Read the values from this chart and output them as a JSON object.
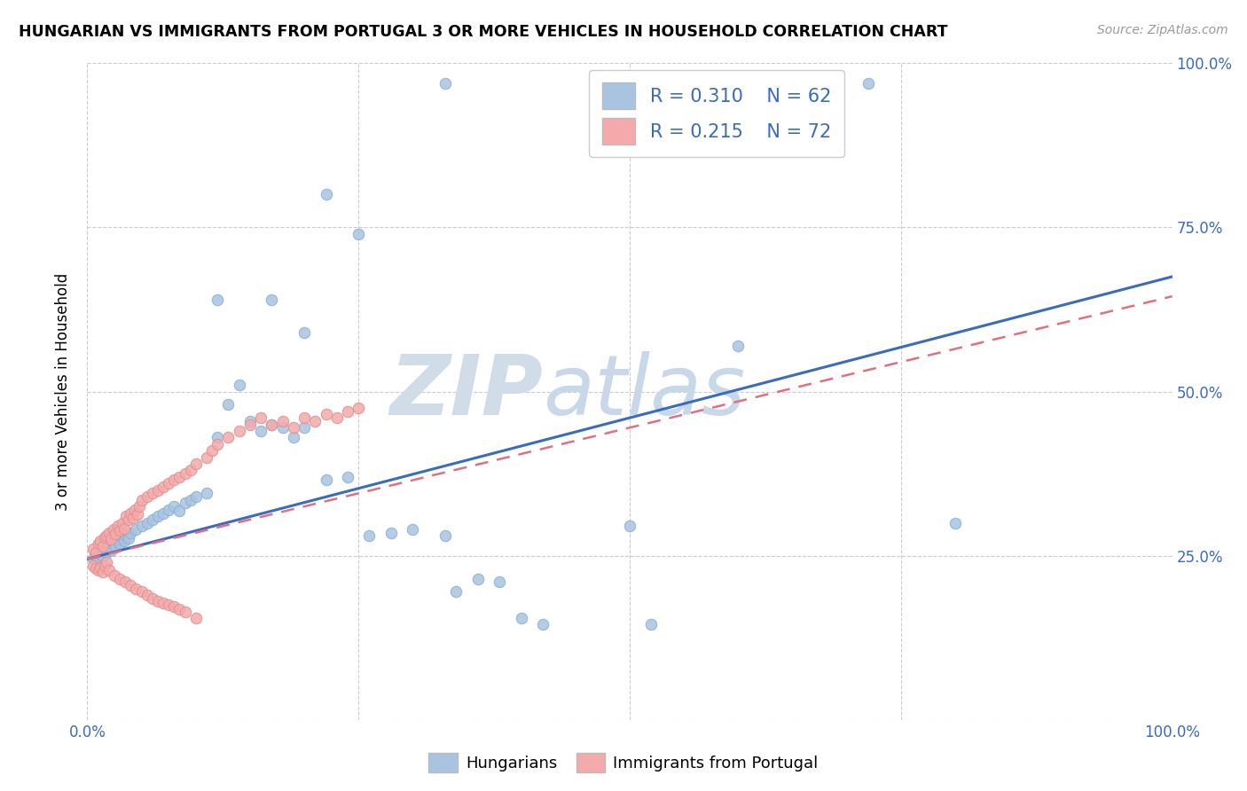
{
  "title": "HUNGARIAN VS IMMIGRANTS FROM PORTUGAL 3 OR MORE VEHICLES IN HOUSEHOLD CORRELATION CHART",
  "source": "Source: ZipAtlas.com",
  "ylabel": "3 or more Vehicles in Household",
  "xlim": [
    0,
    1.0
  ],
  "ylim": [
    0,
    1.0
  ],
  "blue_R": 0.31,
  "blue_N": 62,
  "pink_R": 0.215,
  "pink_N": 72,
  "blue_color": "#A8C4E0",
  "pink_color": "#F4AAAA",
  "blue_line_color": "#3A6BBF",
  "pink_line_color": "#E07080",
  "legend_color": "#3A6BBF",
  "watermark_zip_color": "#D0DCE8",
  "watermark_atlas_color": "#C8D8E8",
  "blue_line_x0": 0.0,
  "blue_line_y0": 0.245,
  "blue_line_x1": 1.0,
  "blue_line_y1": 0.675,
  "pink_line_x0": 0.0,
  "pink_line_y0": 0.245,
  "pink_line_x1": 1.0,
  "pink_line_y1": 0.645,
  "blue_x": [
    0.005,
    0.008,
    0.01,
    0.012,
    0.014,
    0.016,
    0.018,
    0.02,
    0.022,
    0.024,
    0.026,
    0.028,
    0.03,
    0.032,
    0.034,
    0.036,
    0.038,
    0.04,
    0.045,
    0.05,
    0.055,
    0.06,
    0.065,
    0.07,
    0.075,
    0.08,
    0.085,
    0.09,
    0.095,
    0.1,
    0.11,
    0.12,
    0.13,
    0.14,
    0.15,
    0.16,
    0.17,
    0.18,
    0.19,
    0.2,
    0.22,
    0.24,
    0.26,
    0.28,
    0.3,
    0.33,
    0.34,
    0.36,
    0.38,
    0.4,
    0.42,
    0.5,
    0.52,
    0.33,
    0.72,
    0.8,
    0.22,
    0.25,
    0.12,
    0.17,
    0.2,
    0.6
  ],
  "blue_y": [
    0.245,
    0.24,
    0.248,
    0.252,
    0.25,
    0.26,
    0.255,
    0.265,
    0.258,
    0.27,
    0.263,
    0.275,
    0.268,
    0.278,
    0.272,
    0.28,
    0.276,
    0.285,
    0.29,
    0.295,
    0.3,
    0.305,
    0.31,
    0.315,
    0.32,
    0.325,
    0.318,
    0.33,
    0.335,
    0.34,
    0.345,
    0.43,
    0.48,
    0.51,
    0.455,
    0.44,
    0.45,
    0.445,
    0.43,
    0.445,
    0.365,
    0.37,
    0.28,
    0.285,
    0.29,
    0.28,
    0.195,
    0.215,
    0.21,
    0.155,
    0.145,
    0.295,
    0.145,
    0.97,
    0.97,
    0.3,
    0.8,
    0.74,
    0.64,
    0.64,
    0.59,
    0.57
  ],
  "pink_x": [
    0.005,
    0.008,
    0.01,
    0.012,
    0.014,
    0.016,
    0.018,
    0.02,
    0.022,
    0.024,
    0.026,
    0.028,
    0.03,
    0.032,
    0.034,
    0.036,
    0.038,
    0.04,
    0.042,
    0.044,
    0.046,
    0.048,
    0.05,
    0.055,
    0.06,
    0.065,
    0.07,
    0.075,
    0.08,
    0.085,
    0.09,
    0.095,
    0.1,
    0.11,
    0.115,
    0.12,
    0.13,
    0.14,
    0.15,
    0.16,
    0.17,
    0.18,
    0.19,
    0.2,
    0.21,
    0.22,
    0.23,
    0.24,
    0.25,
    0.005,
    0.008,
    0.01,
    0.012,
    0.014,
    0.016,
    0.018,
    0.02,
    0.025,
    0.03,
    0.035,
    0.04,
    0.045,
    0.05,
    0.055,
    0.06,
    0.065,
    0.07,
    0.075,
    0.08,
    0.085,
    0.09,
    0.1
  ],
  "pink_y": [
    0.26,
    0.255,
    0.268,
    0.272,
    0.265,
    0.278,
    0.28,
    0.285,
    0.275,
    0.29,
    0.283,
    0.295,
    0.288,
    0.3,
    0.292,
    0.31,
    0.305,
    0.315,
    0.308,
    0.32,
    0.313,
    0.325,
    0.335,
    0.34,
    0.345,
    0.35,
    0.355,
    0.36,
    0.365,
    0.37,
    0.375,
    0.38,
    0.39,
    0.4,
    0.41,
    0.42,
    0.43,
    0.44,
    0.45,
    0.46,
    0.45,
    0.455,
    0.445,
    0.46,
    0.455,
    0.465,
    0.46,
    0.47,
    0.475,
    0.235,
    0.23,
    0.228,
    0.232,
    0.225,
    0.235,
    0.24,
    0.228,
    0.22,
    0.215,
    0.21,
    0.205,
    0.2,
    0.195,
    0.19,
    0.185,
    0.18,
    0.178,
    0.175,
    0.172,
    0.168,
    0.165,
    0.155
  ]
}
